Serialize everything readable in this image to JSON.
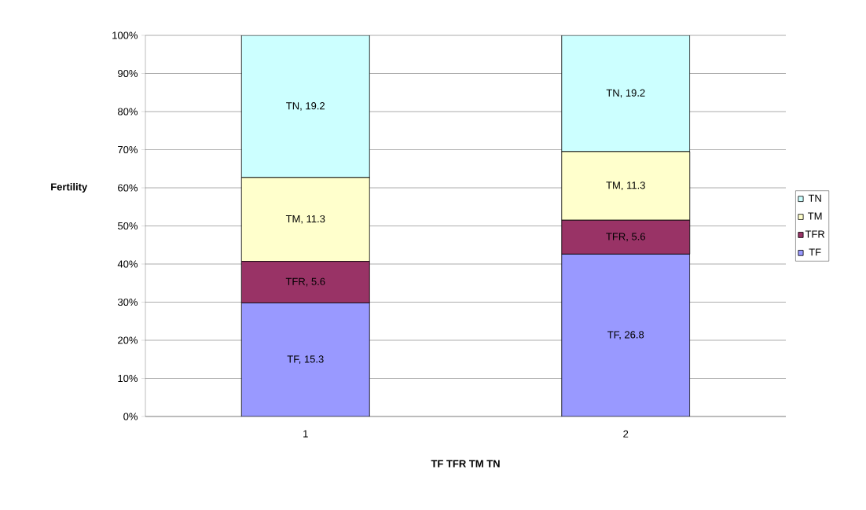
{
  "chart_data": {
    "type": "bar",
    "stacked": true,
    "xlabel": "TF TFR TM TN",
    "ylabel": "Fertility",
    "categories": [
      "1",
      "2"
    ],
    "series": [
      {
        "name": "TF",
        "color": "#9999ff",
        "values": [
          29.8,
          42.6
        ]
      },
      {
        "name": "TFR",
        "color": "#993366",
        "values": [
          10.9,
          8.9
        ]
      },
      {
        "name": "TM",
        "color": "#ffffcc",
        "values": [
          22.0,
          18.0
        ]
      },
      {
        "name": "TN",
        "color": "#ccffff",
        "values": [
          37.3,
          30.5
        ]
      }
    ],
    "annotations": [
      "TF, 15.3",
      "TF, 26.8",
      "TFR, 5.6",
      "TFR, 5.6",
      "TM, 11.3",
      "TM, 11.3",
      "TN, 19.2",
      "TN, 19.2"
    ],
    "ylim": [
      0,
      100
    ],
    "yticks": [
      {
        "value": 0,
        "label": "0%"
      },
      {
        "value": 10,
        "label": "10%"
      },
      {
        "value": 20,
        "label": "20%"
      },
      {
        "value": 30,
        "label": "30%"
      },
      {
        "value": 40,
        "label": "40%"
      },
      {
        "value": 50,
        "label": "50%"
      },
      {
        "value": 60,
        "label": "60%"
      },
      {
        "value": 70,
        "label": "70%"
      },
      {
        "value": 80,
        "label": "80%"
      },
      {
        "value": 90,
        "label": "90%"
      },
      {
        "value": 100,
        "label": "100%"
      }
    ],
    "grid": "y",
    "legend": "right"
  }
}
